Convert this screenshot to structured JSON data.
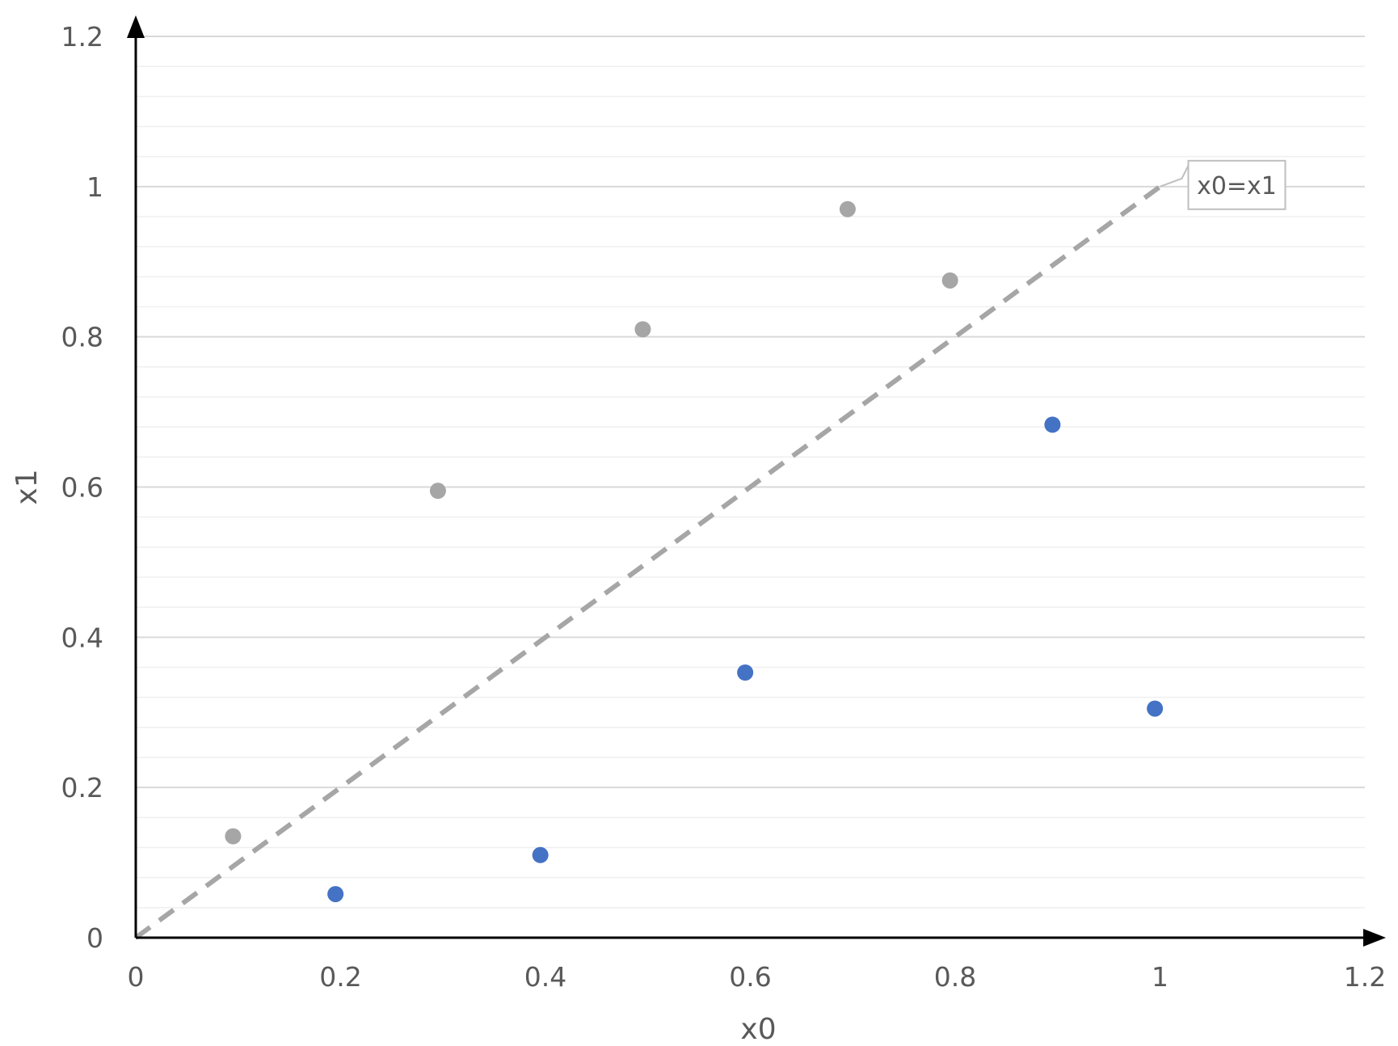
{
  "chart_data": {
    "type": "scatter",
    "title": "",
    "xlabel": "x0",
    "ylabel": "x1",
    "xlim": [
      0,
      1.2
    ],
    "ylim": [
      0,
      1.2
    ],
    "x_ticks": [
      "0",
      "0.2",
      "0.4",
      "0.6",
      "0.8",
      "1",
      "1.2"
    ],
    "y_ticks": [
      "0",
      "0.2",
      "0.4",
      "0.6",
      "0.8",
      "1",
      "1.2"
    ],
    "grid": {
      "major": true,
      "minor": true
    },
    "colors": {
      "gray_points": "#a6a6a6",
      "blue_points": "#4472c4",
      "reference_line": "#a6a6a6",
      "axis": "#000000",
      "major_grid": "#d9d9d9",
      "minor_grid": "#efefef"
    },
    "series": [
      {
        "color": "gray",
        "points": [
          {
            "x": 0.095,
            "y": 0.135
          },
          {
            "x": 0.295,
            "y": 0.595
          },
          {
            "x": 0.495,
            "y": 0.81
          },
          {
            "x": 0.695,
            "y": 0.97
          },
          {
            "x": 0.795,
            "y": 0.875
          }
        ]
      },
      {
        "color": "blue",
        "points": [
          {
            "x": 0.195,
            "y": 0.058
          },
          {
            "x": 0.395,
            "y": 0.11
          },
          {
            "x": 0.595,
            "y": 0.353
          },
          {
            "x": 0.895,
            "y": 0.683
          },
          {
            "x": 0.995,
            "y": 0.305
          }
        ]
      }
    ],
    "reference_line": {
      "style": "dashed",
      "from": [
        0,
        0
      ],
      "to": [
        1,
        1
      ],
      "label": "x0=x1"
    }
  }
}
